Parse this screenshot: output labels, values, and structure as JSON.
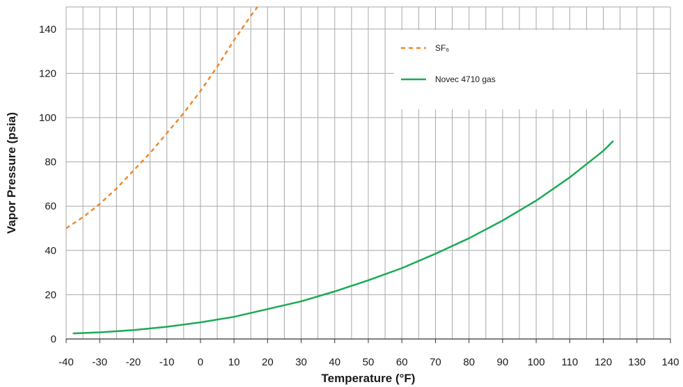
{
  "chart_data": {
    "type": "line",
    "title": "",
    "xlabel": "Temperature (°F)",
    "ylabel": "Vapor Pressure (psia)",
    "xlim": [
      -40,
      140
    ],
    "ylim": [
      0,
      150
    ],
    "xticks": [
      -40,
      -30,
      -20,
      -10,
      0,
      10,
      20,
      30,
      40,
      50,
      60,
      70,
      80,
      90,
      100,
      110,
      120,
      130,
      140
    ],
    "xtick_labels": [
      "-40",
      "-30",
      "-20",
      "-10",
      "0",
      "10",
      "20",
      "30",
      "40",
      "50",
      "60",
      "70",
      "80",
      "90",
      "100",
      "110",
      "120",
      "130",
      "140"
    ],
    "yticks": [
      0,
      20,
      40,
      60,
      80,
      100,
      120,
      140
    ],
    "ytick_labels": [
      "0",
      "20",
      "40",
      "60",
      "80",
      "100",
      "120",
      "140"
    ],
    "grid": true,
    "legend_position": "top-right",
    "series": [
      {
        "name": "SF₆",
        "color": "#f0872a",
        "style": "dashed",
        "x": [
          -40,
          -35,
          -30,
          -25,
          -20,
          -15,
          -10,
          -5,
          0,
          5,
          10,
          15,
          17
        ],
        "y": [
          50,
          55,
          61,
          68,
          76,
          84,
          93,
          102,
          112,
          123,
          135,
          146,
          150
        ]
      },
      {
        "name": "Novec 4710 gas",
        "color": "#1aaa55",
        "style": "solid",
        "x": [
          -38,
          -30,
          -20,
          -10,
          0,
          10,
          20,
          30,
          40,
          50,
          60,
          70,
          80,
          90,
          100,
          110,
          120,
          123
        ],
        "y": [
          2.5,
          3,
          4,
          5.5,
          7.5,
          10,
          13.5,
          17,
          21.5,
          26.5,
          32,
          38.5,
          45.5,
          53.5,
          62.5,
          73,
          85,
          89.5
        ]
      }
    ]
  }
}
